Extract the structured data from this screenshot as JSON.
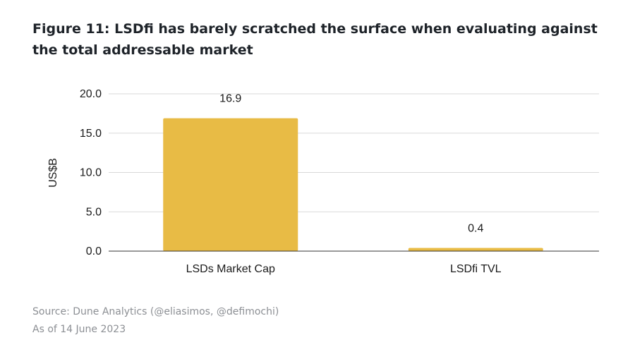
{
  "figure": {
    "title": "Figure 11: LSDfi has barely scratched the surface when evaluating against the total addressable market"
  },
  "chart_data": {
    "type": "bar",
    "title": "Figure 11: LSDfi has barely scratched the surface when evaluating against the total addressable market",
    "xlabel": "",
    "ylabel": "US$B",
    "categories": [
      "LSDs Market Cap",
      "LSDfi TVL"
    ],
    "values": [
      16.9,
      0.4
    ],
    "data_labels": [
      "16.9",
      "0.4"
    ],
    "ylim": [
      0,
      20
    ],
    "yticks": [
      0,
      5,
      10,
      15,
      20
    ],
    "ytick_labels": [
      "0.0",
      "5.0",
      "10.0",
      "15.0",
      "20.0"
    ],
    "grid": true,
    "legend": "none",
    "bar_color": "#e8bb45",
    "grid_color": "#d9d9d9",
    "axis_color": "#333333",
    "text_color": "#1a1a1a"
  },
  "footer": {
    "source": "Source: Dune Analytics (@eliasimos, @defimochi)",
    "date": "As of 14 June 2023"
  }
}
